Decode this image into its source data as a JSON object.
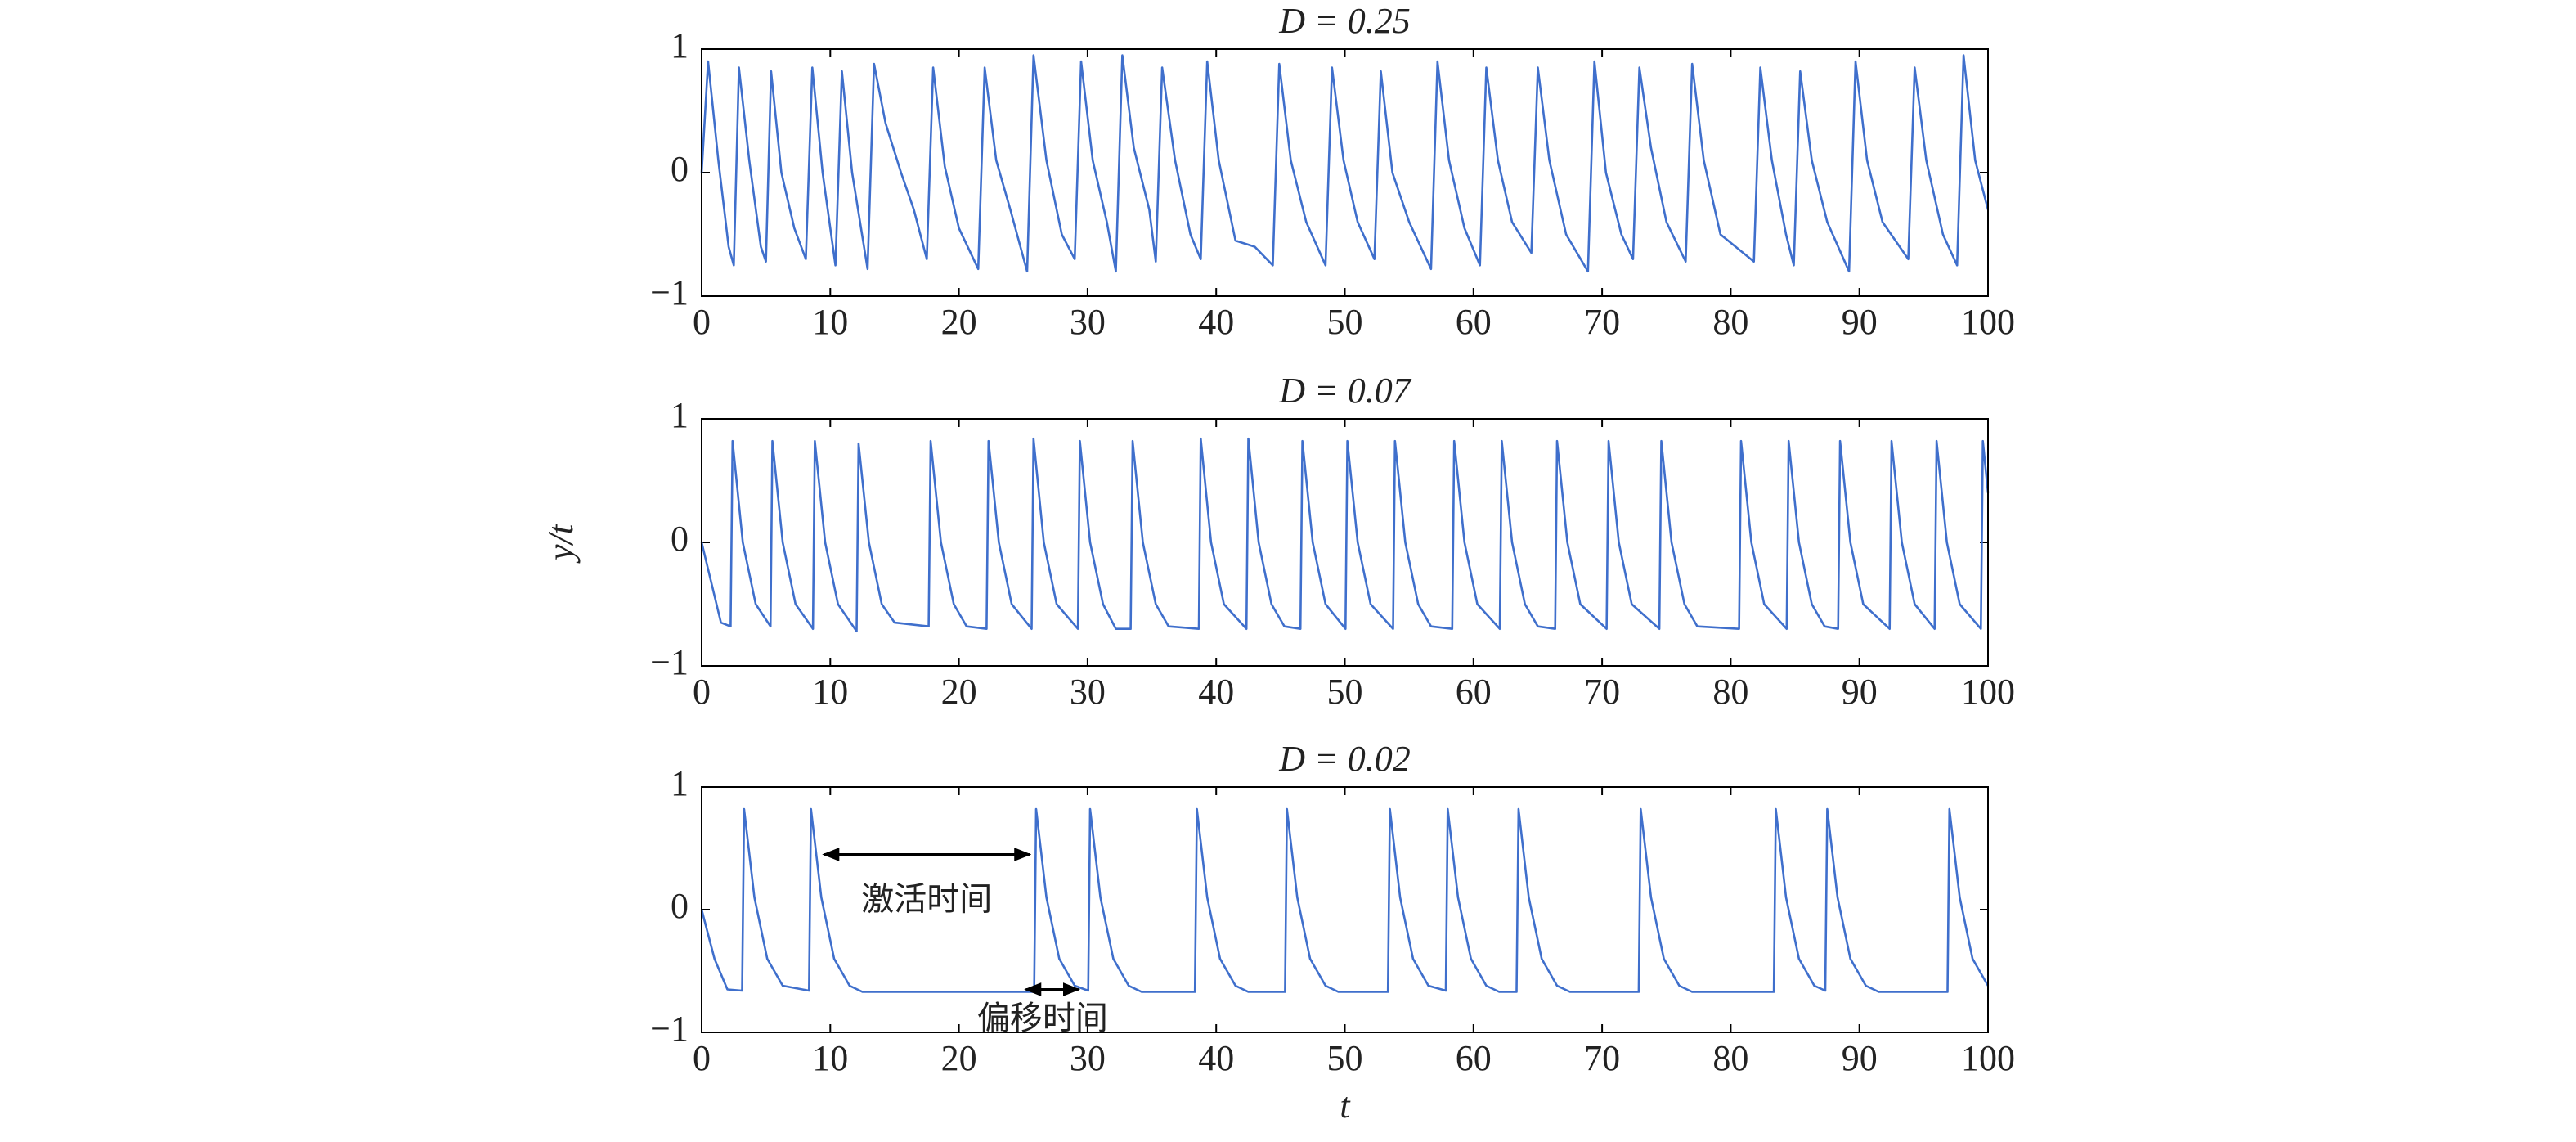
{
  "chart_data": [
    {
      "type": "line",
      "title": "D = 0.25",
      "color": "#3f6fcc",
      "x": [
        0,
        0.5,
        1.3,
        2.1,
        2.5,
        2.9,
        3.7,
        4.6,
        5.0,
        5.4,
        6.2,
        7.2,
        8.1,
        8.6,
        9.4,
        10.4,
        10.9,
        11.7,
        12.9,
        13.4,
        14.3,
        15.5,
        16.5,
        17.5,
        18.0,
        18.9,
        20,
        21.5,
        22.0,
        22.9,
        24,
        25.3,
        25.8,
        26.8,
        28,
        29.0,
        29.5,
        30.4,
        31.5,
        32.2,
        32.7,
        33.6,
        34.8,
        35.3,
        35.8,
        36.8,
        38,
        38.8,
        39.3,
        40.2,
        41.5,
        43,
        44.4,
        44.9,
        45.8,
        47,
        48.5,
        49.0,
        49.9,
        51,
        52.3,
        52.8,
        53.7,
        55,
        56.7,
        57.2,
        58.1,
        59.3,
        60.5,
        61.0,
        61.9,
        63,
        64.5,
        65.0,
        65.9,
        67.2,
        68.9,
        69.4,
        70.3,
        71.5,
        72.4,
        72.9,
        73.8,
        75,
        76.5,
        77.0,
        77.9,
        79.2,
        81.8,
        82.3,
        83.2,
        84.3,
        84.9,
        85.4,
        86.3,
        87.5,
        89.2,
        89.7,
        90.6,
        91.8,
        93.8,
        94.3,
        95.2,
        96.5,
        97.6,
        98.1,
        99,
        100
      ],
      "values": [
        0,
        0.9,
        0.1,
        -0.6,
        -0.75,
        0.85,
        0.1,
        -0.6,
        -0.72,
        0.82,
        0,
        -0.45,
        -0.7,
        0.85,
        0,
        -0.75,
        0.82,
        0,
        -0.78,
        0.88,
        0.4,
        0,
        -0.3,
        -0.7,
        0.85,
        0.05,
        -0.45,
        -0.78,
        0.85,
        0.1,
        -0.3,
        -0.8,
        0.95,
        0.1,
        -0.5,
        -0.7,
        0.9,
        0.1,
        -0.4,
        -0.8,
        0.95,
        0.2,
        -0.3,
        -0.72,
        0.85,
        0.1,
        -0.5,
        -0.7,
        0.9,
        0.1,
        -0.55,
        -0.6,
        -0.75,
        0.88,
        0.1,
        -0.4,
        -0.75,
        0.85,
        0.1,
        -0.4,
        -0.7,
        0.82,
        0,
        -0.4,
        -0.78,
        0.9,
        0.1,
        -0.45,
        -0.75,
        0.85,
        0.1,
        -0.4,
        -0.65,
        0.85,
        0.1,
        -0.5,
        -0.8,
        0.9,
        0,
        -0.5,
        -0.7,
        0.85,
        0.2,
        -0.4,
        -0.72,
        0.88,
        0.1,
        -0.5,
        -0.72,
        0.85,
        0.1,
        -0.5,
        -0.75,
        0.82,
        0.1,
        -0.4,
        -0.8,
        0.9,
        0.1,
        -0.4,
        -0.7,
        0.85,
        0.1,
        -0.5,
        -0.75,
        0.95,
        0.1,
        -0.3
      ],
      "xlim": [
        0,
        100
      ],
      "ylim": [
        -1,
        1
      ],
      "xticks": [
        0,
        10,
        20,
        30,
        40,
        50,
        60,
        70,
        80,
        90,
        100
      ],
      "yticks": [
        {
          "value": -1,
          "label": "−1"
        },
        0,
        1
      ]
    },
    {
      "type": "line",
      "title": "D = 0.07",
      "color": "#3f6fcc",
      "ylabel": "y/t",
      "x": [
        0,
        1.5,
        2.25,
        2.4,
        3.2,
        4.2,
        5.35,
        5.5,
        6.3,
        7.3,
        8.65,
        8.8,
        9.6,
        10.6,
        12.05,
        12.2,
        13,
        14,
        15,
        17.65,
        17.8,
        18.6,
        19.6,
        20.6,
        22.15,
        22.3,
        23.1,
        24.1,
        25.65,
        25.8,
        26.6,
        27.6,
        29.25,
        29.4,
        30.2,
        31.2,
        32.2,
        33.35,
        33.5,
        34.3,
        35.3,
        36.3,
        38.65,
        38.8,
        39.6,
        40.6,
        42.35,
        42.5,
        43.3,
        44.3,
        45.3,
        46.55,
        46.7,
        47.5,
        48.5,
        50.05,
        50.2,
        51,
        52,
        53.75,
        53.9,
        54.7,
        55.7,
        56.7,
        58.35,
        58.5,
        59.3,
        60.3,
        62.05,
        62.2,
        63,
        64,
        65,
        66.35,
        66.5,
        67.3,
        68.3,
        70.35,
        70.5,
        71.3,
        72.3,
        74.45,
        74.6,
        75.4,
        76.4,
        77.4,
        80.65,
        80.8,
        81.6,
        82.6,
        84.35,
        84.5,
        85.3,
        86.3,
        87.3,
        88.35,
        88.5,
        89.3,
        90.3,
        92.35,
        92.5,
        93.3,
        94.3,
        95.85,
        96,
        96.8,
        97.8,
        99.45,
        99.6,
        100
      ],
      "values": [
        0,
        -0.65,
        -0.68,
        0.82,
        0,
        -0.5,
        -0.68,
        0.82,
        0,
        -0.5,
        -0.7,
        0.82,
        0,
        -0.5,
        -0.72,
        0.8,
        0,
        -0.5,
        -0.65,
        -0.68,
        0.82,
        0,
        -0.5,
        -0.68,
        -0.7,
        0.82,
        0,
        -0.5,
        -0.7,
        0.84,
        0,
        -0.5,
        -0.7,
        0.82,
        0,
        -0.5,
        -0.7,
        -0.7,
        0.82,
        0,
        -0.5,
        -0.68,
        -0.7,
        0.84,
        0,
        -0.5,
        -0.7,
        0.84,
        0,
        -0.5,
        -0.68,
        -0.7,
        0.82,
        0,
        -0.5,
        -0.7,
        0.82,
        0,
        -0.5,
        -0.7,
        0.82,
        0,
        -0.5,
        -0.68,
        -0.7,
        0.82,
        0,
        -0.5,
        -0.7,
        0.82,
        0,
        -0.5,
        -0.68,
        -0.7,
        0.82,
        0,
        -0.5,
        -0.7,
        0.82,
        0,
        -0.5,
        -0.7,
        0.82,
        0,
        -0.5,
        -0.68,
        -0.7,
        0.82,
        0,
        -0.5,
        -0.7,
        0.82,
        0,
        -0.5,
        -0.68,
        -0.7,
        0.82,
        0,
        -0.5,
        -0.7,
        0.82,
        0,
        -0.5,
        -0.7,
        0.82,
        0,
        -0.5,
        -0.7,
        0.82,
        0.4
      ],
      "xlim": [
        0,
        100
      ],
      "ylim": [
        -1,
        1
      ],
      "xticks": [
        0,
        10,
        20,
        30,
        40,
        50,
        60,
        70,
        80,
        90,
        100
      ],
      "yticks": [
        {
          "value": -1,
          "label": "−1"
        },
        0,
        1
      ]
    },
    {
      "type": "line",
      "title": "D = 0.02",
      "color": "#3f6fcc",
      "xlabel": "t",
      "annotations": [
        "激活时间",
        "偏移时间"
      ],
      "x": [
        0,
        1,
        2,
        3.15,
        3.3,
        4.1,
        5.1,
        6.3,
        8.35,
        8.5,
        9.3,
        10.3,
        11.5,
        12.5,
        25.85,
        26,
        26.8,
        27.8,
        29,
        30.05,
        30.2,
        31,
        32,
        33.2,
        34.2,
        38.35,
        38.5,
        39.3,
        40.3,
        41.5,
        42.5,
        45.35,
        45.5,
        46.3,
        47.3,
        48.5,
        49.5,
        53.35,
        53.5,
        54.3,
        55.3,
        56.5,
        57.85,
        58,
        58.8,
        59.8,
        61,
        62,
        63.35,
        63.5,
        64.3,
        65.3,
        66.5,
        67.5,
        72.85,
        73,
        73.8,
        74.8,
        76,
        77,
        83.35,
        83.5,
        84.3,
        85.3,
        86.5,
        87.35,
        87.5,
        88.3,
        89.3,
        90.5,
        91.5,
        96.85,
        97,
        97.8,
        98.8,
        100
      ],
      "values": [
        0,
        -0.4,
        -0.65,
        -0.66,
        0.82,
        0.1,
        -0.4,
        -0.62,
        -0.66,
        0.82,
        0.1,
        -0.4,
        -0.62,
        -0.67,
        -0.67,
        0.82,
        0.1,
        -0.4,
        -0.62,
        -0.66,
        0.82,
        0.1,
        -0.4,
        -0.62,
        -0.67,
        -0.67,
        0.82,
        0.1,
        -0.4,
        -0.62,
        -0.67,
        -0.67,
        0.82,
        0.1,
        -0.4,
        -0.62,
        -0.67,
        -0.67,
        0.82,
        0.1,
        -0.4,
        -0.62,
        -0.66,
        0.82,
        0.1,
        -0.4,
        -0.62,
        -0.67,
        -0.67,
        0.82,
        0.1,
        -0.4,
        -0.62,
        -0.67,
        -0.67,
        0.82,
        0.1,
        -0.4,
        -0.62,
        -0.67,
        -0.67,
        0.82,
        0.1,
        -0.4,
        -0.62,
        -0.66,
        0.82,
        0.1,
        -0.4,
        -0.62,
        -0.67,
        -0.67,
        0.82,
        0.1,
        -0.4,
        -0.62
      ],
      "xlim": [
        0,
        100
      ],
      "ylim": [
        -1,
        1
      ],
      "xticks": [
        0,
        10,
        20,
        30,
        40,
        50,
        60,
        70,
        80,
        90,
        100
      ],
      "yticks": [
        {
          "value": -1,
          "label": "−1"
        },
        0,
        1
      ]
    }
  ]
}
